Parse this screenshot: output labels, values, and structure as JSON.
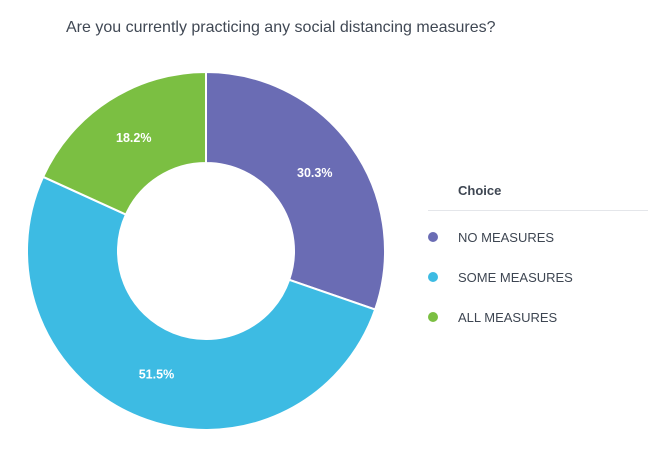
{
  "title": "Are you currently practicing any social distancing measures?",
  "chart_data": {
    "type": "pie",
    "title": "Are you currently practicing any social distancing measures?",
    "donut": true,
    "legend_title": "Choice",
    "legend_position": "right",
    "slices": [
      {
        "name": "NO MEASURES",
        "value": 30.3,
        "label": "30.3%",
        "color": "#6a6cb4"
      },
      {
        "name": "SOME MEASURES",
        "value": 51.5,
        "label": "51.5%",
        "color": "#3dbbe3"
      },
      {
        "name": "ALL MEASURES",
        "value": 18.2,
        "label": "18.2%",
        "color": "#7bbf42"
      }
    ]
  }
}
